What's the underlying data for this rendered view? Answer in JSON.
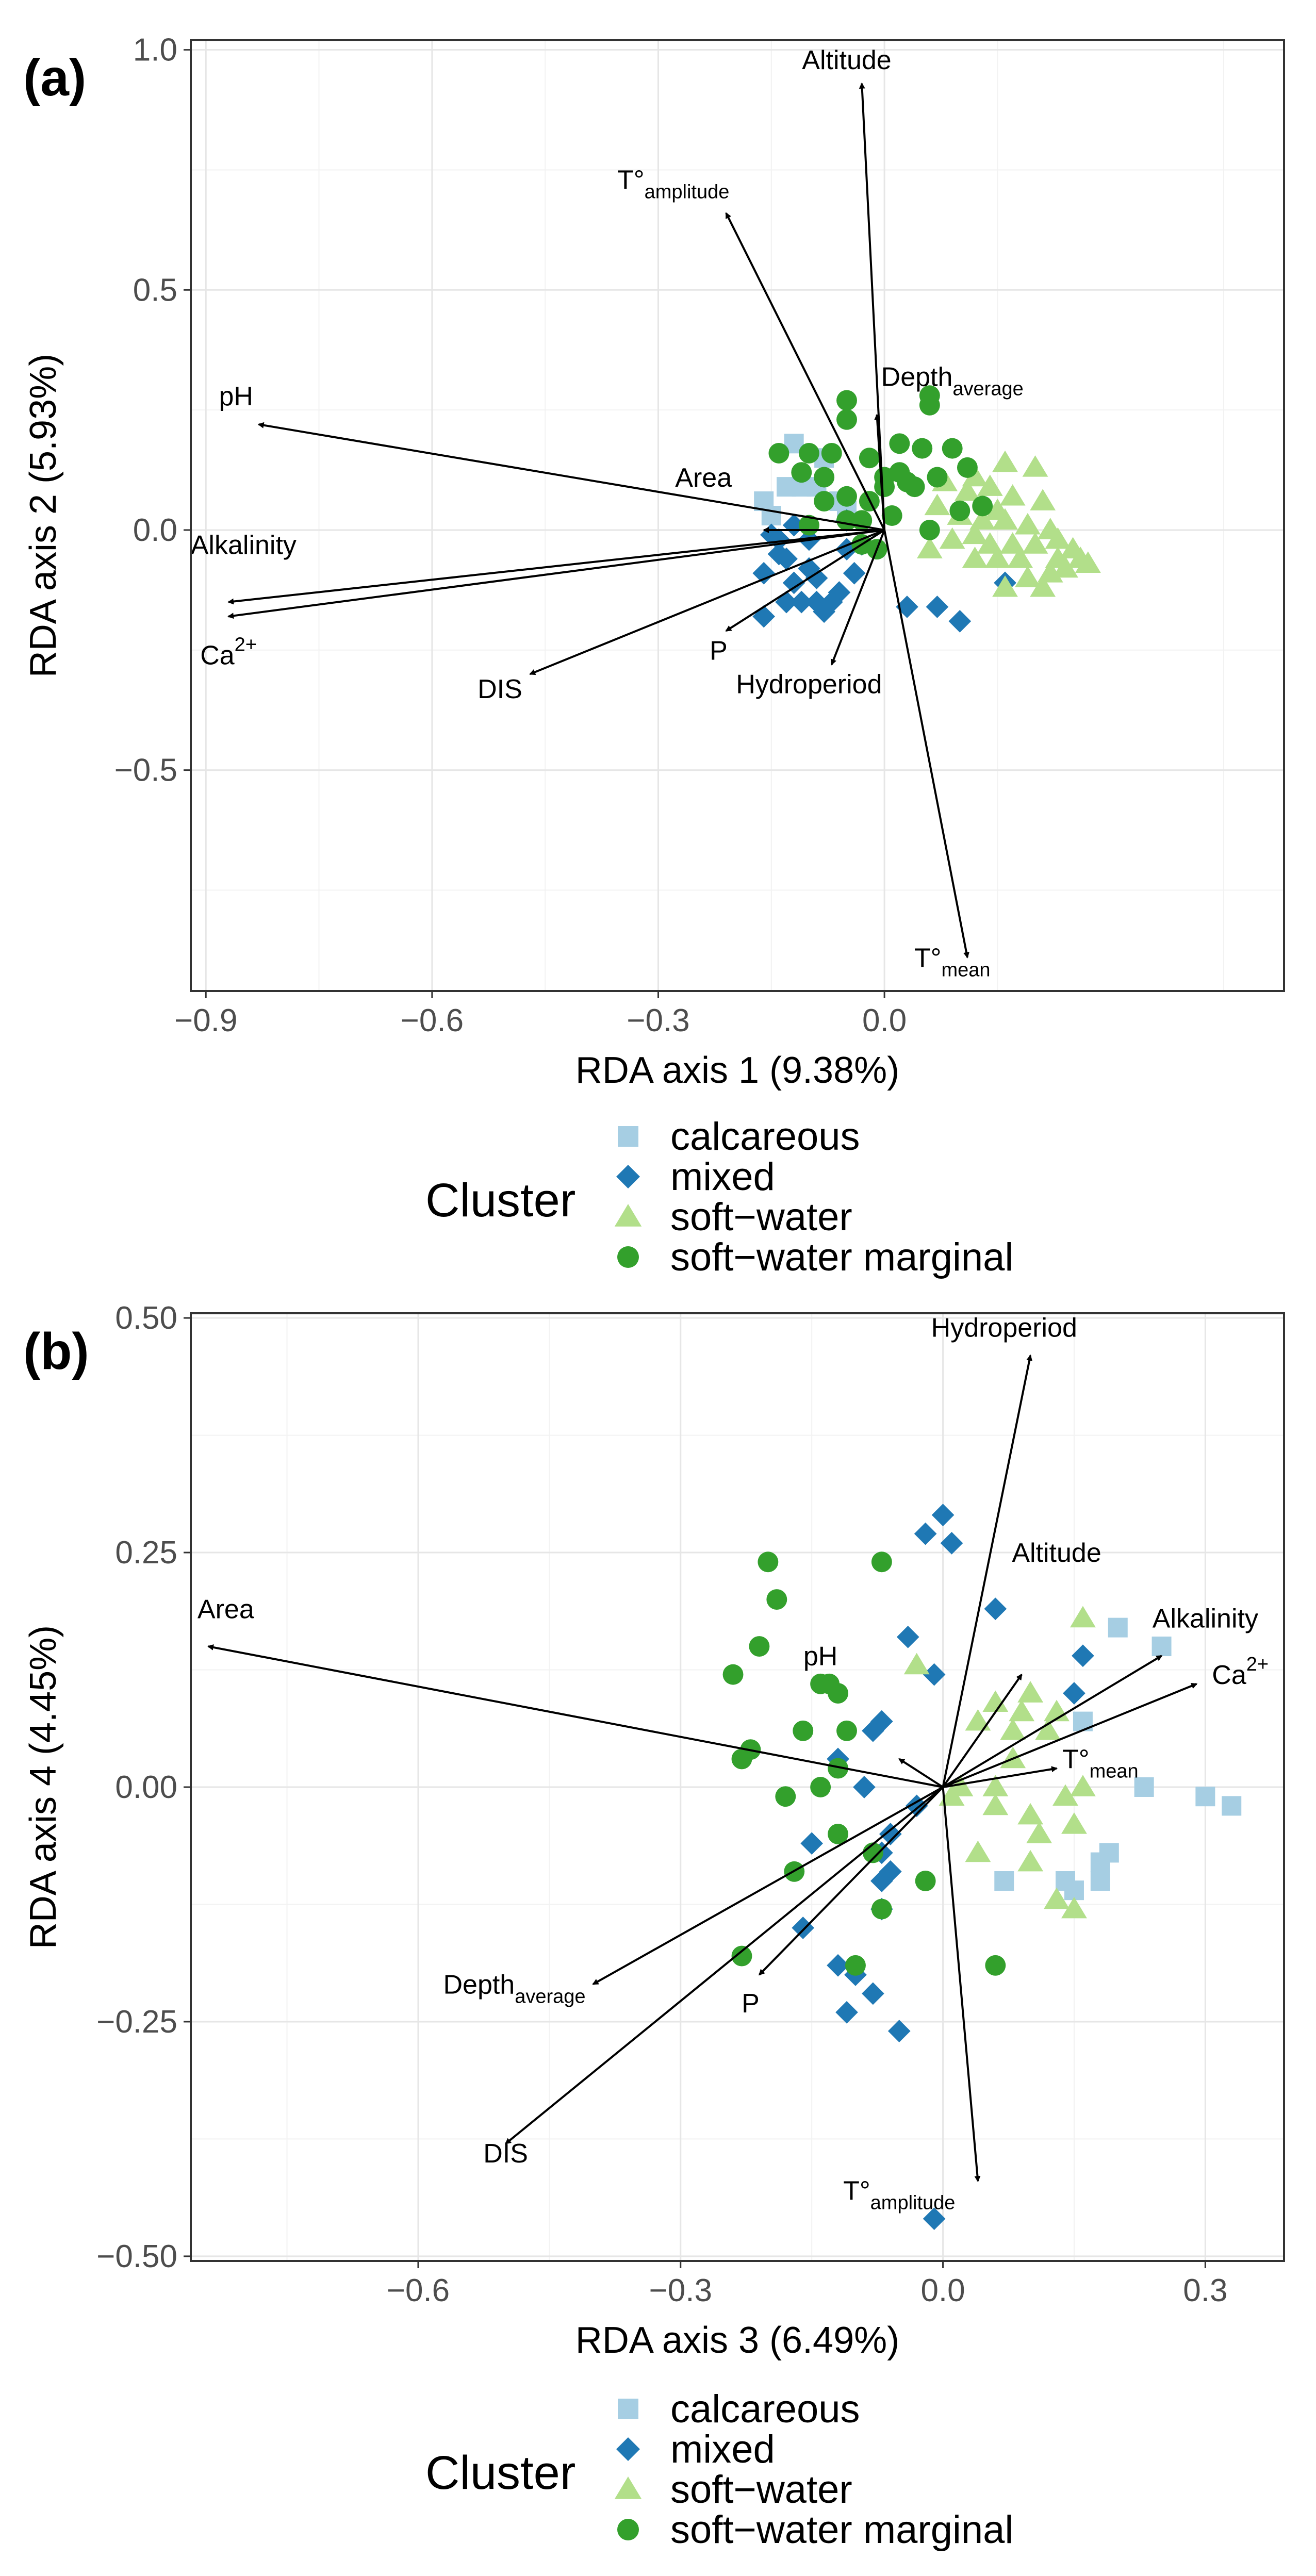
{
  "legend": {
    "title": "Cluster",
    "entries": [
      {
        "label": "calcareous",
        "color": "#a6cee3",
        "shape": "square"
      },
      {
        "label": "mixed",
        "color": "#1f78b4",
        "shape": "diamond"
      },
      {
        "label": "soft−water",
        "color": "#b2df8a",
        "shape": "triangle"
      },
      {
        "label": "soft−water marginal",
        "color": "#33a02c",
        "shape": "circle"
      }
    ]
  },
  "chart_data": [
    {
      "type": "scatter",
      "panel": "(a)",
      "xlabel": "RDA axis 1 (9.38%)",
      "ylabel": "RDA axis 2 (5.93%)",
      "xlim": [
        -0.92,
        0.53
      ],
      "ylim": [
        -0.96,
        1.02
      ],
      "xticks": [
        -0.9,
        -0.6,
        -0.3,
        0.0
      ],
      "xtick_labels": [
        "−0.9",
        "−0.6",
        "−0.3",
        "0.0"
      ],
      "yticks": [
        -0.5,
        0.0,
        0.5,
        1.0
      ],
      "ytick_labels": [
        "−0.5",
        "0.0",
        "0.5",
        "1.0"
      ],
      "arrows": [
        {
          "main": "Altitude",
          "sub": "",
          "x": -0.03,
          "y": 0.93,
          "lx": -0.05,
          "ly": 0.96
        },
        {
          "main": "T°",
          "sub": "amplitude",
          "x": -0.21,
          "y": 0.66,
          "lx": -0.28,
          "ly": 0.71
        },
        {
          "main": "Depth",
          "sub": "average",
          "x": -0.01,
          "y": 0.24,
          "lx": 0.09,
          "ly": 0.3
        },
        {
          "main": "pH",
          "sub": "",
          "x": -0.83,
          "y": 0.22,
          "lx": -0.86,
          "ly": 0.26
        },
        {
          "main": "Area",
          "sub": "",
          "x": -0.16,
          "y": 0.0,
          "lx": -0.24,
          "ly": 0.09
        },
        {
          "main": "Alkalinity",
          "sub": "",
          "x": -0.87,
          "y": -0.15,
          "lx": -0.85,
          "ly": -0.05
        },
        {
          "main": "Ca",
          "sub": "",
          "sup": "2+",
          "x": -0.87,
          "y": -0.18,
          "lx": -0.87,
          "ly": -0.28
        },
        {
          "main": "DIS",
          "sub": "",
          "x": -0.47,
          "y": -0.3,
          "lx": -0.51,
          "ly": -0.35
        },
        {
          "main": "P",
          "sub": "",
          "x": -0.21,
          "y": -0.21,
          "lx": -0.22,
          "ly": -0.27
        },
        {
          "main": "Hydroperiod",
          "sub": "",
          "x": -0.07,
          "y": -0.28,
          "lx": -0.1,
          "ly": -0.34
        },
        {
          "main": "T°",
          "sub": "mean",
          "x": 0.11,
          "y": -0.89,
          "lx": 0.09,
          "ly": -0.91
        }
      ],
      "series": [
        {
          "name": "calcareous",
          "points": [
            [
              -0.12,
              0.18
            ],
            [
              -0.08,
              0.15
            ],
            [
              -0.11,
              0.09
            ],
            [
              -0.09,
              0.09
            ],
            [
              -0.06,
              0.06
            ],
            [
              -0.05,
              0.04
            ],
            [
              -0.16,
              0.06
            ],
            [
              -0.13,
              0.09
            ],
            [
              -0.15,
              0.03
            ]
          ]
        },
        {
          "name": "mixed",
          "points": [
            [
              -0.15,
              -0.01
            ],
            [
              -0.14,
              -0.05
            ],
            [
              -0.13,
              -0.06
            ],
            [
              -0.16,
              -0.09
            ],
            [
              -0.12,
              -0.11
            ],
            [
              -0.1,
              -0.08
            ],
            [
              -0.09,
              -0.1
            ],
            [
              -0.13,
              -0.15
            ],
            [
              -0.11,
              -0.15
            ],
            [
              -0.09,
              -0.15
            ],
            [
              -0.08,
              -0.17
            ],
            [
              -0.05,
              -0.04
            ],
            [
              -0.04,
              -0.09
            ],
            [
              -0.06,
              -0.13
            ],
            [
              -0.03,
              -0.03
            ],
            [
              -0.1,
              -0.02
            ],
            [
              -0.05,
              0.02
            ],
            [
              -0.14,
              -0.02
            ],
            [
              -0.16,
              -0.18
            ],
            [
              -0.07,
              -0.15
            ],
            [
              0.03,
              -0.16
            ],
            [
              0.1,
              -0.19
            ],
            [
              0.16,
              -0.11
            ],
            [
              -0.12,
              0.01
            ],
            [
              0.07,
              -0.16
            ]
          ]
        },
        {
          "name": "soft-water",
          "points": [
            [
              0.2,
              0.13
            ],
            [
              0.16,
              0.14
            ],
            [
              0.12,
              0.11
            ],
            [
              0.08,
              0.1
            ],
            [
              0.11,
              0.08
            ],
            [
              0.17,
              0.07
            ],
            [
              0.21,
              0.06
            ],
            [
              0.15,
              0.04
            ],
            [
              0.13,
              0.02
            ],
            [
              0.19,
              0.01
            ],
            [
              0.22,
              0.0
            ],
            [
              0.09,
              -0.02
            ],
            [
              0.14,
              -0.03
            ],
            [
              0.17,
              -0.03
            ],
            [
              0.2,
              -0.03
            ],
            [
              0.23,
              -0.02
            ],
            [
              0.25,
              -0.04
            ],
            [
              0.26,
              -0.06
            ],
            [
              0.24,
              -0.08
            ],
            [
              0.22,
              -0.09
            ],
            [
              0.19,
              -0.1
            ],
            [
              0.16,
              -0.12
            ],
            [
              0.21,
              -0.12
            ],
            [
              0.15,
              -0.06
            ],
            [
              0.12,
              -0.01
            ],
            [
              0.1,
              0.03
            ],
            [
              0.07,
              0.05
            ],
            [
              0.23,
              -0.06
            ],
            [
              0.18,
              -0.06
            ],
            [
              0.16,
              0.02
            ],
            [
              0.14,
              0.09
            ],
            [
              0.06,
              -0.04
            ],
            [
              0.12,
              -0.06
            ],
            [
              0.27,
              -0.07
            ]
          ]
        },
        {
          "name": "soft-water marginal",
          "points": [
            [
              -0.05,
              0.23
            ],
            [
              -0.05,
              0.27
            ],
            [
              -0.02,
              0.15
            ],
            [
              0.0,
              0.11
            ],
            [
              -0.1,
              0.16
            ],
            [
              -0.07,
              0.16
            ],
            [
              -0.08,
              0.11
            ],
            [
              -0.11,
              0.12
            ],
            [
              -0.14,
              0.16
            ],
            [
              -0.1,
              0.01
            ],
            [
              -0.08,
              0.06
            ],
            [
              -0.05,
              0.07
            ],
            [
              -0.02,
              0.06
            ],
            [
              0.0,
              0.09
            ],
            [
              0.02,
              0.12
            ],
            [
              0.04,
              0.09
            ],
            [
              0.01,
              0.03
            ],
            [
              -0.05,
              0.02
            ],
            [
              -0.03,
              0.02
            ],
            [
              0.05,
              0.17
            ],
            [
              0.06,
              0.28
            ],
            [
              0.06,
              0.26
            ],
            [
              0.02,
              0.18
            ],
            [
              0.09,
              0.17
            ],
            [
              0.11,
              0.13
            ],
            [
              0.07,
              0.11
            ],
            [
              0.03,
              0.1
            ],
            [
              0.1,
              0.04
            ],
            [
              0.06,
              0.0
            ],
            [
              -0.01,
              -0.04
            ],
            [
              -0.03,
              -0.03
            ],
            [
              0.13,
              0.05
            ]
          ]
        }
      ]
    },
    {
      "type": "scatter",
      "panel": "(b)",
      "xlabel": "RDA axis 3 (6.49%)",
      "ylabel": "RDA axis 4 (4.45%)",
      "xlim": [
        -0.86,
        0.39
      ],
      "ylim": [
        -0.505,
        0.505
      ],
      "xticks": [
        -0.6,
        -0.3,
        0.0,
        0.3
      ],
      "xtick_labels": [
        "−0.6",
        "−0.3",
        "0.0",
        "0.3"
      ],
      "yticks": [
        -0.5,
        -0.25,
        0.0,
        0.25,
        0.5
      ],
      "ytick_labels": [
        "−0.50",
        "−0.25",
        "0.00",
        "0.25",
        "0.50"
      ],
      "arrows": [
        {
          "main": "Hydroperiod",
          "sub": "",
          "x": 0.1,
          "y": 0.46,
          "lx": 0.07,
          "ly": 0.48
        },
        {
          "main": "Altitude",
          "sub": "",
          "x": 0.09,
          "y": 0.12,
          "lx": 0.13,
          "ly": 0.24
        },
        {
          "main": "Alkalinity",
          "sub": "",
          "x": 0.25,
          "y": 0.14,
          "lx": 0.3,
          "ly": 0.17
        },
        {
          "main": "Ca",
          "sub": "",
          "sup": "2+",
          "x": 0.29,
          "y": 0.11,
          "lx": 0.34,
          "ly": 0.11
        },
        {
          "main": "pH",
          "sub": "",
          "x": -0.05,
          "y": 0.03,
          "lx": -0.14,
          "ly": 0.13
        },
        {
          "main": "T°",
          "sub": "mean",
          "x": 0.13,
          "y": 0.02,
          "lx": 0.18,
          "ly": 0.02
        },
        {
          "main": "Area",
          "sub": "",
          "x": -0.84,
          "y": 0.15,
          "lx": -0.82,
          "ly": 0.18
        },
        {
          "main": "Depth",
          "sub": "average",
          "x": -0.4,
          "y": -0.21,
          "lx": -0.49,
          "ly": -0.22
        },
        {
          "main": "P",
          "sub": "",
          "x": -0.21,
          "y": -0.2,
          "lx": -0.22,
          "ly": -0.24
        },
        {
          "main": "DIS",
          "sub": "",
          "x": -0.5,
          "y": -0.38,
          "lx": -0.5,
          "ly": -0.4
        },
        {
          "main": "T°",
          "sub": "amplitude",
          "x": 0.04,
          "y": -0.42,
          "lx": -0.05,
          "ly": -0.44
        }
      ],
      "series": [
        {
          "name": "calcareous",
          "points": [
            [
              0.2,
              0.17
            ],
            [
              0.25,
              0.15
            ],
            [
              0.16,
              0.07
            ],
            [
              0.23,
              0.0
            ],
            [
              0.3,
              -0.01
            ],
            [
              0.33,
              -0.02
            ],
            [
              0.19,
              -0.07
            ],
            [
              0.18,
              -0.08
            ],
            [
              0.18,
              -0.1
            ],
            [
              0.14,
              -0.1
            ],
            [
              0.07,
              -0.1
            ],
            [
              0.15,
              -0.11
            ]
          ]
        },
        {
          "name": "mixed",
          "points": [
            [
              0.0,
              0.29
            ],
            [
              -0.02,
              0.27
            ],
            [
              0.01,
              0.26
            ],
            [
              0.06,
              0.19
            ],
            [
              -0.04,
              0.16
            ],
            [
              0.16,
              0.14
            ],
            [
              -0.01,
              0.12
            ],
            [
              0.15,
              0.1
            ],
            [
              -0.07,
              0.07
            ],
            [
              -0.08,
              0.06
            ],
            [
              -0.12,
              0.03
            ],
            [
              -0.09,
              0.0
            ],
            [
              -0.03,
              -0.02
            ],
            [
              -0.15,
              -0.06
            ],
            [
              -0.06,
              -0.05
            ],
            [
              -0.07,
              -0.07
            ],
            [
              -0.06,
              -0.09
            ],
            [
              -0.07,
              -0.1
            ],
            [
              -0.07,
              -0.13
            ],
            [
              -0.16,
              -0.15
            ],
            [
              -0.12,
              -0.19
            ],
            [
              -0.1,
              -0.2
            ],
            [
              -0.08,
              -0.22
            ],
            [
              -0.11,
              -0.24
            ],
            [
              -0.05,
              -0.26
            ],
            [
              -0.01,
              -0.46
            ]
          ]
        },
        {
          "name": "soft-water",
          "points": [
            [
              0.16,
              0.18
            ],
            [
              -0.03,
              0.13
            ],
            [
              0.1,
              0.1
            ],
            [
              0.06,
              0.09
            ],
            [
              0.09,
              0.08
            ],
            [
              0.04,
              0.07
            ],
            [
              0.13,
              0.08
            ],
            [
              0.12,
              0.06
            ],
            [
              0.08,
              0.03
            ],
            [
              0.06,
              0.0
            ],
            [
              0.01,
              -0.01
            ],
            [
              0.06,
              -0.02
            ],
            [
              0.1,
              -0.03
            ],
            [
              0.14,
              -0.01
            ],
            [
              0.16,
              0.0
            ],
            [
              0.15,
              -0.04
            ],
            [
              0.11,
              -0.05
            ],
            [
              0.04,
              -0.07
            ],
            [
              0.1,
              -0.08
            ],
            [
              0.13,
              -0.12
            ],
            [
              0.15,
              -0.13
            ],
            [
              0.02,
              0.0
            ],
            [
              0.08,
              0.06
            ]
          ]
        },
        {
          "name": "soft-water marginal",
          "points": [
            [
              -0.2,
              0.24
            ],
            [
              -0.07,
              0.24
            ],
            [
              -0.19,
              0.2
            ],
            [
              -0.24,
              0.12
            ],
            [
              -0.21,
              0.15
            ],
            [
              -0.14,
              0.11
            ],
            [
              -0.12,
              0.1
            ],
            [
              -0.16,
              0.06
            ],
            [
              -0.22,
              0.04
            ],
            [
              -0.23,
              0.03
            ],
            [
              -0.12,
              0.02
            ],
            [
              -0.14,
              0.0
            ],
            [
              -0.18,
              -0.01
            ],
            [
              -0.12,
              -0.05
            ],
            [
              -0.17,
              -0.09
            ],
            [
              -0.08,
              -0.07
            ],
            [
              -0.02,
              -0.1
            ],
            [
              -0.07,
              -0.13
            ],
            [
              -0.23,
              -0.18
            ],
            [
              -0.1,
              -0.19
            ],
            [
              0.06,
              -0.19
            ],
            [
              -0.13,
              0.11
            ],
            [
              -0.11,
              0.06
            ]
          ]
        }
      ]
    }
  ]
}
